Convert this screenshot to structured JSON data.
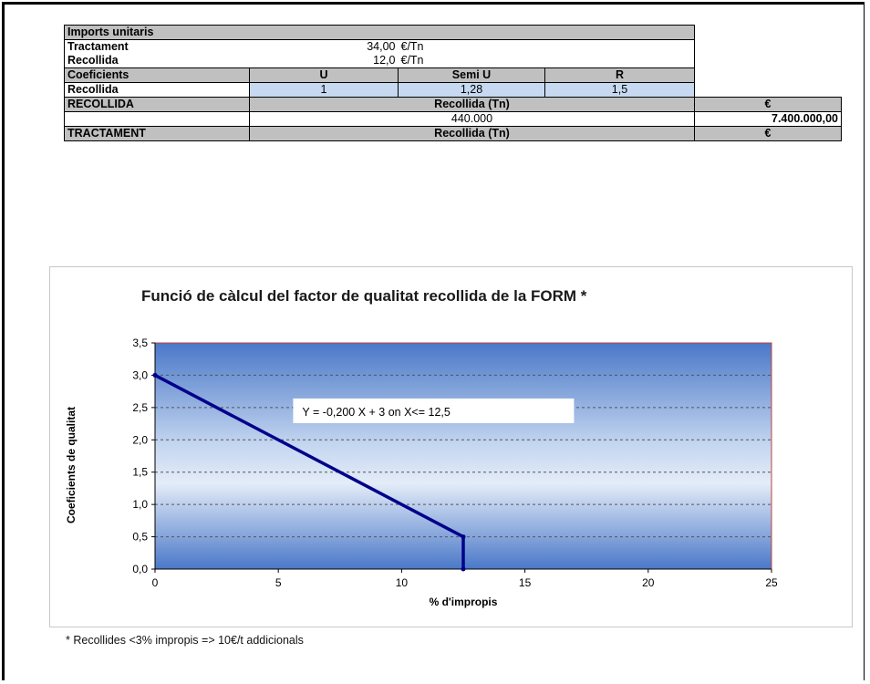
{
  "table": {
    "imports_header": "Imports unitaris",
    "tractament_label": "Tractament",
    "tractament_value": "34,00",
    "tractament_unit": "€/Tn",
    "recollida_label": "Recollida",
    "recollida_value": "12,0",
    "recollida_unit": "€/Tn",
    "coef_header": "Coeficients",
    "coef_cols": [
      "U",
      "Semi U",
      "R"
    ],
    "coef_row_label": "Recollida",
    "coef_values": [
      "1",
      "1,28",
      "1,5"
    ],
    "recollida_section": "RECOLLIDA",
    "recollida_tn_header": "Recollida (Tn)",
    "euro_header": "€",
    "recollida_tn_value": "440.000",
    "recollida_euro_value": "7.400.000,00",
    "tractament_section": "TRACTAMENT",
    "tractament_tn_header": "Recollida (Tn)",
    "tractament_euro_header": "€"
  },
  "chart_data": {
    "type": "line",
    "title": "Funció de càlcul del factor de qualitat recollida de la FORM *",
    "xlabel": "% d'impropis",
    "ylabel": "Coeficients de qualitat",
    "xlim": [
      0,
      25
    ],
    "ylim": [
      0,
      3.5
    ],
    "x_ticks": [
      "0",
      "5",
      "10",
      "15",
      "20",
      "25"
    ],
    "y_ticks": [
      "0,0",
      "0,5",
      "1,0",
      "1,5",
      "2,0",
      "2,5",
      "3,0",
      "3,5"
    ],
    "grid": true,
    "series": [
      {
        "x": [
          0,
          12.5,
          12.5
        ],
        "y": [
          3.0,
          0.5,
          0.0
        ]
      }
    ],
    "annotation": "Y = -0,200 X + 3 on X<= 12,5"
  },
  "footnote": "* Recollides <3% impropis  => 10€/t addicionals",
  "colors": {
    "header_grey": "#c0c0c0",
    "cell_blue": "#c6d9f1",
    "line": "#00008b"
  }
}
